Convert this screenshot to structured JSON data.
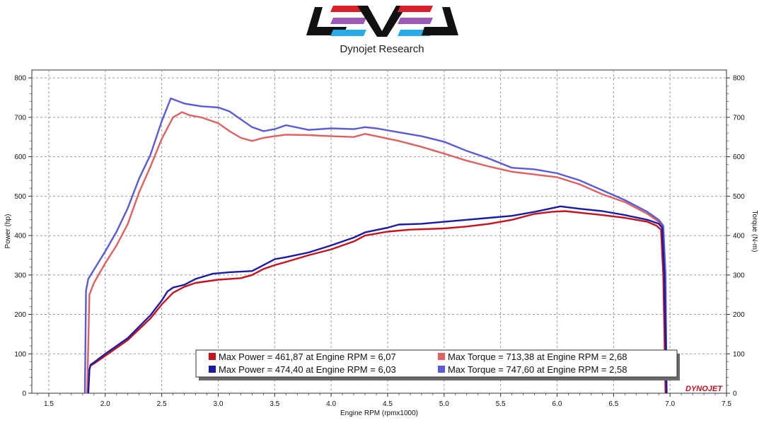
{
  "header": {
    "logo_name": "LEVEL",
    "subtitle": "Dynojet Research"
  },
  "watermark": "DYNOJET",
  "colors": {
    "power_run1": "#c8121b",
    "power_run2": "#1a1aa8",
    "torque_run1": "#e06060",
    "torque_run2": "#5a5ad8",
    "grid": "#9a9a9a",
    "plot_bg": "#ffffff"
  },
  "chart_data": {
    "type": "line",
    "title": "Dynojet Research",
    "xlabel": "Engine RPM (rpmx1000)",
    "ylabel_left": "Power (hp)",
    "ylabel_right": "Torque (N-m)",
    "xlim": [
      1.35,
      7.5
    ],
    "ylim": [
      0,
      820
    ],
    "x_ticks": [
      "1.5",
      "2.0",
      "2.5",
      "3.0",
      "3.5",
      "4.0",
      "4.5",
      "5.0",
      "5.5",
      "6.0",
      "6.5",
      "7.0",
      "7.5"
    ],
    "y_ticks_left": [
      "0",
      "100",
      "200",
      "300",
      "400",
      "500",
      "600",
      "700",
      "800"
    ],
    "y_ticks_right": [
      "0",
      "100",
      "200",
      "300",
      "400",
      "500",
      "600",
      "700",
      "800"
    ],
    "grid": true,
    "series": [
      {
        "name": "Max Power = 461,87 at Engine RPM = 6,07",
        "role": "power-run-1",
        "color": "#c8121b",
        "points": [
          [
            1.85,
            0
          ],
          [
            1.86,
            60
          ],
          [
            1.87,
            70
          ],
          [
            1.9,
            75
          ],
          [
            2.0,
            95
          ],
          [
            2.2,
            135
          ],
          [
            2.4,
            190
          ],
          [
            2.5,
            225
          ],
          [
            2.6,
            255
          ],
          [
            2.7,
            270
          ],
          [
            2.8,
            280
          ],
          [
            3.0,
            288
          ],
          [
            3.1,
            290
          ],
          [
            3.2,
            292
          ],
          [
            3.3,
            300
          ],
          [
            3.4,
            315
          ],
          [
            3.5,
            325
          ],
          [
            3.6,
            333
          ],
          [
            3.8,
            350
          ],
          [
            4.0,
            365
          ],
          [
            4.2,
            385
          ],
          [
            4.3,
            400
          ],
          [
            4.5,
            410
          ],
          [
            4.7,
            415
          ],
          [
            5.0,
            418
          ],
          [
            5.2,
            423
          ],
          [
            5.4,
            430
          ],
          [
            5.6,
            440
          ],
          [
            5.8,
            455
          ],
          [
            5.95,
            460
          ],
          [
            6.07,
            462
          ],
          [
            6.2,
            458
          ],
          [
            6.4,
            452
          ],
          [
            6.6,
            445
          ],
          [
            6.8,
            435
          ],
          [
            6.88,
            425
          ],
          [
            6.92,
            415
          ],
          [
            6.94,
            300
          ],
          [
            6.96,
            0
          ]
        ]
      },
      {
        "name": "Max Power = 474,40 at Engine RPM = 6,03",
        "role": "power-run-2",
        "color": "#1a1aa8",
        "points": [
          [
            1.85,
            0
          ],
          [
            1.86,
            60
          ],
          [
            1.87,
            72
          ],
          [
            1.9,
            78
          ],
          [
            2.0,
            100
          ],
          [
            2.2,
            140
          ],
          [
            2.4,
            198
          ],
          [
            2.5,
            235
          ],
          [
            2.55,
            258
          ],
          [
            2.6,
            268
          ],
          [
            2.7,
            275
          ],
          [
            2.8,
            290
          ],
          [
            2.95,
            303
          ],
          [
            3.1,
            307
          ],
          [
            3.3,
            310
          ],
          [
            3.4,
            325
          ],
          [
            3.5,
            340
          ],
          [
            3.6,
            345
          ],
          [
            3.8,
            357
          ],
          [
            4.0,
            375
          ],
          [
            4.2,
            395
          ],
          [
            4.3,
            408
          ],
          [
            4.5,
            420
          ],
          [
            4.6,
            428
          ],
          [
            4.8,
            430
          ],
          [
            5.0,
            435
          ],
          [
            5.2,
            440
          ],
          [
            5.4,
            445
          ],
          [
            5.6,
            450
          ],
          [
            5.8,
            460
          ],
          [
            6.03,
            474
          ],
          [
            6.2,
            468
          ],
          [
            6.4,
            462
          ],
          [
            6.6,
            452
          ],
          [
            6.8,
            440
          ],
          [
            6.9,
            430
          ],
          [
            6.93,
            420
          ],
          [
            6.95,
            300
          ],
          [
            6.97,
            0
          ]
        ]
      },
      {
        "name": "Max Torque = 713,38 at Engine RPM = 2,68",
        "role": "torque-run-1",
        "color": "#e06060",
        "points": [
          [
            1.84,
            0
          ],
          [
            1.86,
            250
          ],
          [
            1.9,
            280
          ],
          [
            2.0,
            330
          ],
          [
            2.1,
            375
          ],
          [
            2.2,
            430
          ],
          [
            2.3,
            510
          ],
          [
            2.4,
            575
          ],
          [
            2.5,
            645
          ],
          [
            2.6,
            700
          ],
          [
            2.68,
            713
          ],
          [
            2.75,
            705
          ],
          [
            2.85,
            700
          ],
          [
            3.0,
            685
          ],
          [
            3.1,
            665
          ],
          [
            3.2,
            648
          ],
          [
            3.3,
            640
          ],
          [
            3.4,
            648
          ],
          [
            3.5,
            652
          ],
          [
            3.6,
            656
          ],
          [
            3.8,
            655
          ],
          [
            4.0,
            652
          ],
          [
            4.2,
            650
          ],
          [
            4.3,
            658
          ],
          [
            4.4,
            652
          ],
          [
            4.6,
            640
          ],
          [
            4.8,
            625
          ],
          [
            5.0,
            608
          ],
          [
            5.2,
            590
          ],
          [
            5.4,
            575
          ],
          [
            5.6,
            562
          ],
          [
            5.8,
            555
          ],
          [
            6.0,
            548
          ],
          [
            6.2,
            530
          ],
          [
            6.4,
            505
          ],
          [
            6.6,
            485
          ],
          [
            6.8,
            455
          ],
          [
            6.9,
            435
          ],
          [
            6.94,
            420
          ],
          [
            6.96,
            300
          ],
          [
            6.97,
            0
          ]
        ]
      },
      {
        "name": "Max Torque = 747,60 at Engine RPM = 2,58",
        "role": "torque-run-2",
        "color": "#5a5ad8",
        "points": [
          [
            1.82,
            0
          ],
          [
            1.83,
            260
          ],
          [
            1.85,
            290
          ],
          [
            2.0,
            360
          ],
          [
            2.1,
            410
          ],
          [
            2.2,
            470
          ],
          [
            2.3,
            545
          ],
          [
            2.4,
            605
          ],
          [
            2.5,
            690
          ],
          [
            2.58,
            748
          ],
          [
            2.7,
            735
          ],
          [
            2.85,
            728
          ],
          [
            3.0,
            725
          ],
          [
            3.1,
            715
          ],
          [
            3.2,
            695
          ],
          [
            3.3,
            675
          ],
          [
            3.4,
            665
          ],
          [
            3.5,
            670
          ],
          [
            3.6,
            680
          ],
          [
            3.8,
            668
          ],
          [
            4.0,
            672
          ],
          [
            4.2,
            670
          ],
          [
            4.3,
            675
          ],
          [
            4.4,
            672
          ],
          [
            4.6,
            662
          ],
          [
            4.8,
            652
          ],
          [
            5.0,
            638
          ],
          [
            5.2,
            615
          ],
          [
            5.4,
            595
          ],
          [
            5.6,
            572
          ],
          [
            5.8,
            568
          ],
          [
            6.0,
            558
          ],
          [
            6.2,
            540
          ],
          [
            6.4,
            515
          ],
          [
            6.6,
            490
          ],
          [
            6.8,
            460
          ],
          [
            6.9,
            440
          ],
          [
            6.94,
            425
          ],
          [
            6.96,
            300
          ],
          [
            6.97,
            0
          ]
        ]
      }
    ]
  },
  "legend": {
    "entries": [
      {
        "label": "Max Power = 461,87 at Engine RPM = 6,07",
        "color": "#c8121b"
      },
      {
        "label": "Max Torque = 713,38 at Engine RPM = 2,68",
        "color": "#e06060"
      },
      {
        "label": "Max Power = 474,40 at Engine RPM = 6,03",
        "color": "#1a1aa8"
      },
      {
        "label": "Max Torque = 747,60 at Engine RPM = 2,58",
        "color": "#5a5ad8"
      }
    ]
  }
}
